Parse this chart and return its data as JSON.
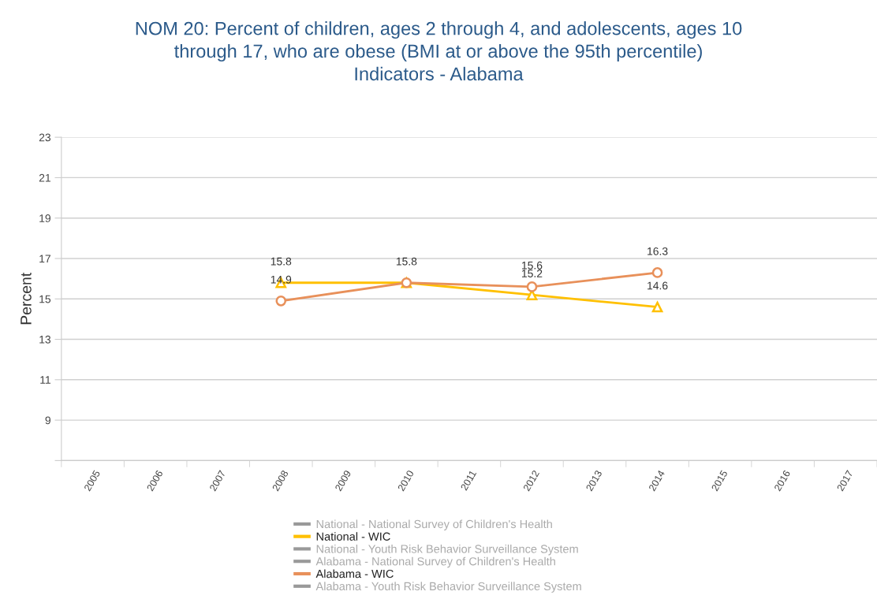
{
  "chart_data": {
    "type": "line",
    "title": "NOM 20: Percent of children, ages 2 through 4, and adolescents, ages 10\nthrough 17, who are obese (BMI at or above the 95th percentile)\nIndicators - Alabama",
    "ylabel": "Percent",
    "categories": [
      "2005",
      "2006",
      "2007",
      "2008",
      "2009",
      "2010",
      "2011",
      "2012",
      "2013",
      "2014",
      "2015",
      "2016",
      "2017"
    ],
    "series": [
      {
        "name": "National - National Survey of Children's Health",
        "color": "#999999",
        "values": [
          null,
          null,
          null,
          null,
          null,
          null,
          null,
          null,
          null,
          null,
          null,
          null,
          null
        ]
      },
      {
        "name": "National - WIC",
        "color": "#ffc000",
        "marker": "triangle",
        "values": [
          null,
          null,
          null,
          15.8,
          null,
          15.8,
          null,
          15.2,
          null,
          14.6,
          null,
          null,
          null
        ],
        "value_labels": [
          null,
          null,
          null,
          "15.8",
          null,
          "15.8",
          null,
          "15.2",
          null,
          "14.6",
          null,
          null,
          null
        ]
      },
      {
        "name": "National - Youth Risk Behavior Surveillance System",
        "color": "#999999",
        "values": [
          null,
          null,
          null,
          null,
          null,
          null,
          null,
          null,
          null,
          null,
          null,
          null,
          null
        ]
      },
      {
        "name": "Alabama - National Survey of Children's Health",
        "color": "#999999",
        "values": [
          null,
          null,
          null,
          null,
          null,
          null,
          null,
          null,
          null,
          null,
          null,
          null,
          null
        ]
      },
      {
        "name": "Alabama - WIC",
        "color": "#e8905a",
        "marker": "circle",
        "values": [
          null,
          null,
          null,
          14.9,
          null,
          15.8,
          null,
          15.6,
          null,
          16.3,
          null,
          null,
          null
        ],
        "value_labels": [
          null,
          null,
          null,
          "14.9",
          null,
          null,
          null,
          "15.6",
          null,
          "16.3",
          null,
          null,
          null
        ]
      },
      {
        "name": "Alabama - Youth Risk Behavior Surveillance System",
        "color": "#999999",
        "values": [
          null,
          null,
          null,
          null,
          null,
          null,
          null,
          null,
          null,
          null,
          null,
          null,
          null
        ]
      }
    ],
    "ylim": [
      7,
      23
    ],
    "yticks": [
      {
        "value": 7,
        "label": null
      },
      9,
      11,
      13,
      15,
      17,
      19,
      21,
      23
    ],
    "grid": "y",
    "legend": "bottom"
  }
}
